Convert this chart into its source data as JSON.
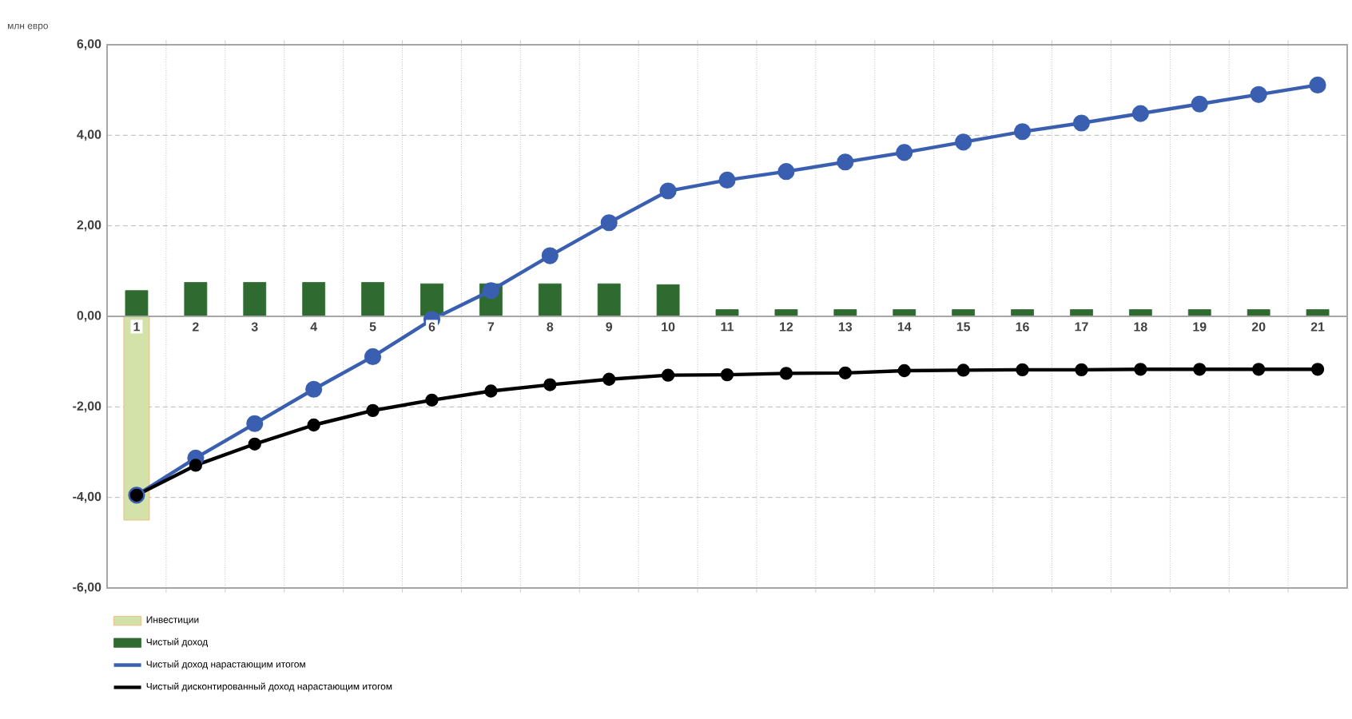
{
  "chart_data": {
    "type": "bar",
    "ylabel": "млн евро",
    "categories": [
      "1",
      "2",
      "3",
      "4",
      "5",
      "6",
      "7",
      "8",
      "9",
      "10",
      "11",
      "12",
      "13",
      "14",
      "15",
      "16",
      "17",
      "18",
      "19",
      "20",
      "21"
    ],
    "series": [
      {
        "name": "Инвестиции",
        "type": "bar",
        "color": "#d3e2a9",
        "values": [
          -4.5,
          null,
          null,
          null,
          null,
          null,
          null,
          null,
          null,
          null,
          null,
          null,
          null,
          null,
          null,
          null,
          null,
          null,
          null,
          null,
          null
        ]
      },
      {
        "name": "Чистый доход",
        "type": "bar",
        "color": "#2f6b30",
        "values": [
          0.57,
          0.75,
          0.75,
          0.75,
          0.75,
          0.72,
          0.72,
          0.72,
          0.72,
          0.7,
          0.15,
          0.15,
          0.15,
          0.15,
          0.15,
          0.15,
          0.15,
          0.15,
          0.15,
          0.15,
          0.15
        ]
      },
      {
        "name": "Чистый доход нарастающим итогом",
        "type": "line",
        "color": "#3a5fb0",
        "marker": "circle",
        "values": [
          -3.95,
          -3.13,
          -2.37,
          -1.61,
          -0.89,
          -0.07,
          0.57,
          1.34,
          2.07,
          2.77,
          3.01,
          3.2,
          3.41,
          3.62,
          3.85,
          4.08,
          4.27,
          4.48,
          4.69,
          4.9,
          5.11
        ]
      },
      {
        "name": "Чистый дисконтированный доход нарастающим итогом",
        "type": "line",
        "color": "#000000",
        "marker": "circle",
        "values": [
          -3.95,
          -3.29,
          -2.82,
          -2.4,
          -2.08,
          -1.85,
          -1.65,
          -1.51,
          -1.39,
          -1.3,
          -1.29,
          -1.26,
          -1.25,
          -1.2,
          -1.19,
          -1.18,
          -1.18,
          -1.17,
          -1.17,
          -1.17,
          -1.17
        ]
      }
    ],
    "ylim": [
      -6,
      6
    ],
    "yticks": [
      {
        "value": -6,
        "label": "-6,00"
      },
      {
        "value": -4,
        "label": "-4,00"
      },
      {
        "value": -2,
        "label": "-2,00"
      },
      {
        "value": 0,
        "label": "0,00"
      },
      {
        "value": 2,
        "label": "2,00"
      },
      {
        "value": 4,
        "label": "4,00"
      },
      {
        "value": 6,
        "label": "6,00"
      }
    ],
    "grid": true,
    "legend": "bottom"
  }
}
